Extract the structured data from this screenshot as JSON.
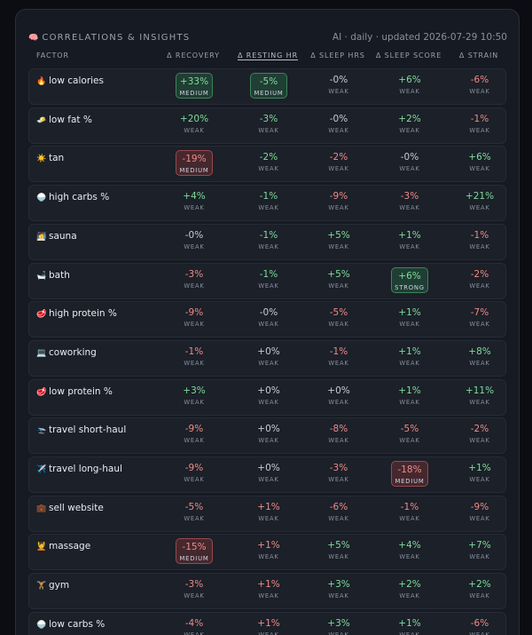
{
  "header": {
    "icon": "brain-icon",
    "title": "CORRELATIONS & INSIGHTS",
    "meta": "AI · daily · updated 2026-07-29 10:50"
  },
  "columns": [
    "FACTOR",
    "Δ RECOVERY",
    "Δ RESTING HR",
    "Δ SLEEP HRS",
    "Δ SLEEP SCORE",
    "Δ STRAIN"
  ],
  "sorted_column": 2,
  "colors": {
    "positive": "#7fdc9a",
    "negative": "#f08a86",
    "neutral": "#c7ccd5",
    "panel": "#161a22",
    "row": "#1b2029"
  },
  "rows": [
    {
      "emoji": "🔥",
      "factor": "low calories",
      "cells": [
        {
          "v": "+33%",
          "s": "MEDIUM",
          "t": "pos",
          "box": true
        },
        {
          "v": "-5%",
          "s": "MEDIUM",
          "t": "pos",
          "box": true
        },
        {
          "v": "-0%",
          "s": "WEAK",
          "t": "neu"
        },
        {
          "v": "+6%",
          "s": "WEAK",
          "t": "pos"
        },
        {
          "v": "-6%",
          "s": "WEAK",
          "t": "neg"
        }
      ]
    },
    {
      "emoji": "🧈",
      "factor": "low fat %",
      "cells": [
        {
          "v": "+20%",
          "s": "WEAK",
          "t": "pos"
        },
        {
          "v": "-3%",
          "s": "WEAK",
          "t": "pos"
        },
        {
          "v": "-0%",
          "s": "WEAK",
          "t": "neu"
        },
        {
          "v": "+2%",
          "s": "WEAK",
          "t": "pos"
        },
        {
          "v": "-1%",
          "s": "WEAK",
          "t": "neg"
        }
      ]
    },
    {
      "emoji": "☀️",
      "factor": "tan",
      "cells": [
        {
          "v": "-19%",
          "s": "MEDIUM",
          "t": "neg",
          "box": true
        },
        {
          "v": "-2%",
          "s": "WEAK",
          "t": "pos"
        },
        {
          "v": "-2%",
          "s": "WEAK",
          "t": "neg"
        },
        {
          "v": "-0%",
          "s": "WEAK",
          "t": "neu"
        },
        {
          "v": "+6%",
          "s": "WEAK",
          "t": "pos"
        }
      ]
    },
    {
      "emoji": "🍚",
      "factor": "high carbs %",
      "cells": [
        {
          "v": "+4%",
          "s": "WEAK",
          "t": "pos"
        },
        {
          "v": "-1%",
          "s": "WEAK",
          "t": "pos"
        },
        {
          "v": "-9%",
          "s": "WEAK",
          "t": "neg"
        },
        {
          "v": "-3%",
          "s": "WEAK",
          "t": "neg"
        },
        {
          "v": "+21%",
          "s": "WEAK",
          "t": "pos"
        }
      ]
    },
    {
      "emoji": "🧖",
      "factor": "sauna",
      "cells": [
        {
          "v": "-0%",
          "s": "WEAK",
          "t": "neu"
        },
        {
          "v": "-1%",
          "s": "WEAK",
          "t": "pos"
        },
        {
          "v": "+5%",
          "s": "WEAK",
          "t": "pos"
        },
        {
          "v": "+1%",
          "s": "WEAK",
          "t": "pos"
        },
        {
          "v": "-1%",
          "s": "WEAK",
          "t": "neg"
        }
      ]
    },
    {
      "emoji": "🛁",
      "factor": "bath",
      "cells": [
        {
          "v": "-3%",
          "s": "WEAK",
          "t": "neg"
        },
        {
          "v": "-1%",
          "s": "WEAK",
          "t": "pos"
        },
        {
          "v": "+5%",
          "s": "WEAK",
          "t": "pos"
        },
        {
          "v": "+6%",
          "s": "STRONG",
          "t": "pos",
          "box": true
        },
        {
          "v": "-2%",
          "s": "WEAK",
          "t": "neg"
        }
      ]
    },
    {
      "emoji": "🥩",
      "factor": "high protein %",
      "cells": [
        {
          "v": "-9%",
          "s": "WEAK",
          "t": "neg"
        },
        {
          "v": "-0%",
          "s": "WEAK",
          "t": "neu"
        },
        {
          "v": "-5%",
          "s": "WEAK",
          "t": "neg"
        },
        {
          "v": "+1%",
          "s": "WEAK",
          "t": "pos"
        },
        {
          "v": "-7%",
          "s": "WEAK",
          "t": "neg"
        }
      ]
    },
    {
      "emoji": "💻",
      "factor": "coworking",
      "cells": [
        {
          "v": "-1%",
          "s": "WEAK",
          "t": "neg"
        },
        {
          "v": "+0%",
          "s": "WEAK",
          "t": "neu"
        },
        {
          "v": "-1%",
          "s": "WEAK",
          "t": "neg"
        },
        {
          "v": "+1%",
          "s": "WEAK",
          "t": "pos"
        },
        {
          "v": "+8%",
          "s": "WEAK",
          "t": "pos"
        }
      ]
    },
    {
      "emoji": "🥩",
      "factor": "low protein %",
      "cells": [
        {
          "v": "+3%",
          "s": "WEAK",
          "t": "pos"
        },
        {
          "v": "+0%",
          "s": "WEAK",
          "t": "neu"
        },
        {
          "v": "+0%",
          "s": "WEAK",
          "t": "neu"
        },
        {
          "v": "+1%",
          "s": "WEAK",
          "t": "pos"
        },
        {
          "v": "+11%",
          "s": "WEAK",
          "t": "pos"
        }
      ]
    },
    {
      "emoji": "🛬",
      "factor": "travel short-haul",
      "cells": [
        {
          "v": "-9%",
          "s": "WEAK",
          "t": "neg"
        },
        {
          "v": "+0%",
          "s": "WEAK",
          "t": "neu"
        },
        {
          "v": "-8%",
          "s": "WEAK",
          "t": "neg"
        },
        {
          "v": "-5%",
          "s": "WEAK",
          "t": "neg"
        },
        {
          "v": "-2%",
          "s": "WEAK",
          "t": "neg"
        }
      ]
    },
    {
      "emoji": "✈️",
      "factor": "travel long-haul",
      "cells": [
        {
          "v": "-9%",
          "s": "WEAK",
          "t": "neg"
        },
        {
          "v": "+0%",
          "s": "WEAK",
          "t": "neu"
        },
        {
          "v": "-3%",
          "s": "WEAK",
          "t": "neg"
        },
        {
          "v": "-18%",
          "s": "MEDIUM",
          "t": "neg",
          "box": true
        },
        {
          "v": "+1%",
          "s": "WEAK",
          "t": "pos"
        }
      ]
    },
    {
      "emoji": "💼",
      "factor": "sell website",
      "cells": [
        {
          "v": "-5%",
          "s": "WEAK",
          "t": "neg"
        },
        {
          "v": "+1%",
          "s": "WEAK",
          "t": "neg"
        },
        {
          "v": "-6%",
          "s": "WEAK",
          "t": "neg"
        },
        {
          "v": "-1%",
          "s": "WEAK",
          "t": "neg"
        },
        {
          "v": "-9%",
          "s": "WEAK",
          "t": "neg"
        }
      ]
    },
    {
      "emoji": "💆",
      "factor": "massage",
      "cells": [
        {
          "v": "-15%",
          "s": "MEDIUM",
          "t": "neg",
          "box": true
        },
        {
          "v": "+1%",
          "s": "WEAK",
          "t": "neg"
        },
        {
          "v": "+5%",
          "s": "WEAK",
          "t": "pos"
        },
        {
          "v": "+4%",
          "s": "WEAK",
          "t": "pos"
        },
        {
          "v": "+7%",
          "s": "WEAK",
          "t": "pos"
        }
      ]
    },
    {
      "emoji": "🏋️",
      "factor": "gym",
      "cells": [
        {
          "v": "-3%",
          "s": "WEAK",
          "t": "neg"
        },
        {
          "v": "+1%",
          "s": "WEAK",
          "t": "neg"
        },
        {
          "v": "+3%",
          "s": "WEAK",
          "t": "pos"
        },
        {
          "v": "+2%",
          "s": "WEAK",
          "t": "pos"
        },
        {
          "v": "+2%",
          "s": "WEAK",
          "t": "pos"
        }
      ]
    },
    {
      "emoji": "🍚",
      "factor": "low carbs %",
      "cells": [
        {
          "v": "-4%",
          "s": "WEAK",
          "t": "neg"
        },
        {
          "v": "+1%",
          "s": "WEAK",
          "t": "neg"
        },
        {
          "v": "+3%",
          "s": "WEAK",
          "t": "pos"
        },
        {
          "v": "+1%",
          "s": "WEAK",
          "t": "pos"
        },
        {
          "v": "-6%",
          "s": "WEAK",
          "t": "neg"
        }
      ]
    }
  ]
}
